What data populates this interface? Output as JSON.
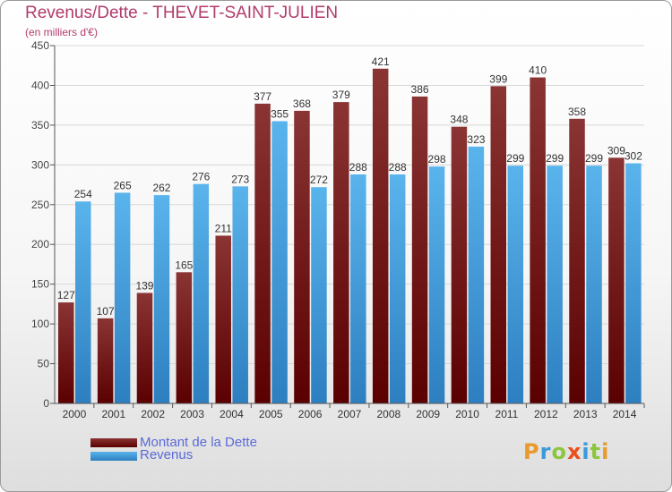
{
  "header": {
    "title": "Revenus/Dette - THEVET-SAINT-JULIEN",
    "subtitle": "(en milliers d'€)"
  },
  "colors": {
    "title": "#b23b6b",
    "dette_top": "#8a3434",
    "dette_bottom": "#5a0000",
    "revenus_top": "#5ab4ec",
    "revenus_bottom": "#2d7fc0",
    "legend_text": "#5a6ad8"
  },
  "legend": {
    "dette_label": "Montant de la Dette",
    "revenus_label": "Revenus"
  },
  "logo": {
    "letters": [
      {
        "char": "P",
        "color": "#e89a2c"
      },
      {
        "char": "r",
        "color": "#3a9ad9"
      },
      {
        "char": "o",
        "color": "#8cc63f"
      },
      {
        "char": "x",
        "color": "#e94e1b"
      },
      {
        "char": "i",
        "color": "#3a9ad9"
      },
      {
        "char": "t",
        "color": "#8cc63f"
      },
      {
        "char": "i",
        "color": "#e89a2c"
      }
    ]
  },
  "chart_data": {
    "type": "bar",
    "categories": [
      "2000",
      "2001",
      "2002",
      "2003",
      "2004",
      "2005",
      "2006",
      "2007",
      "2008",
      "2009",
      "2010",
      "2011",
      "2012",
      "2013",
      "2014"
    ],
    "series": [
      {
        "name": "Montant de la Dette",
        "values": [
          127,
          107,
          139,
          165,
          211,
          377,
          368,
          379,
          421,
          386,
          348,
          399,
          410,
          358,
          309
        ]
      },
      {
        "name": "Revenus",
        "values": [
          254,
          265,
          262,
          276,
          273,
          355,
          272,
          288,
          288,
          298,
          323,
          299,
          299,
          299,
          302
        ]
      }
    ],
    "ylim": [
      0,
      450
    ],
    "yticks": [
      0,
      50,
      100,
      150,
      200,
      250,
      300,
      350,
      400,
      450
    ],
    "grid": true,
    "legend_position": "bottom-left"
  }
}
